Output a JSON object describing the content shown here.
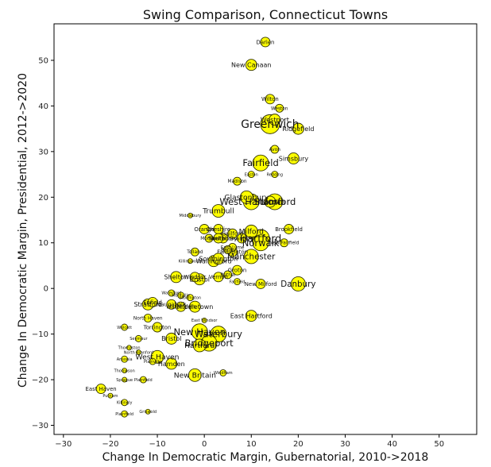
{
  "chart_data": {
    "type": "scatter",
    "title": "Swing Comparison, Connecticut Towns",
    "xlabel": "Change In Democratic Margin, Gubernatorial, 2010->2018",
    "ylabel": "Change In Democratic Margin, Presidential, 2012->2020",
    "xlim": [
      -32,
      58
    ],
    "ylim": [
      -32,
      58
    ],
    "xticks": [
      -30,
      -20,
      -10,
      0,
      10,
      20,
      30,
      40,
      50
    ],
    "yticks": [
      -30,
      -20,
      -10,
      0,
      10,
      20,
      30,
      40,
      50
    ],
    "grid": false,
    "marker_color": "#ffff00",
    "edge_color": "#333300",
    "points": [
      {
        "label": "Darien",
        "x": 13,
        "y": 54,
        "size": 6
      },
      {
        "label": "New Canaan",
        "x": 10,
        "y": 49,
        "size": 7
      },
      {
        "label": "Wilton",
        "x": 14,
        "y": 41.5,
        "size": 6
      },
      {
        "label": "Weston",
        "x": 16,
        "y": 39.5,
        "size": 5
      },
      {
        "label": "Westport",
        "x": 15,
        "y": 37,
        "size": 7
      },
      {
        "label": "Greenwich",
        "x": 14,
        "y": 36,
        "size": 12
      },
      {
        "label": "Ridgefield",
        "x": 20,
        "y": 35,
        "size": 7
      },
      {
        "label": "Avon",
        "x": 15,
        "y": 30.5,
        "size": 5
      },
      {
        "label": "Simsbury",
        "x": 19,
        "y": 28.5,
        "size": 7
      },
      {
        "label": "Fairfield",
        "x": 12,
        "y": 27.5,
        "size": 10
      },
      {
        "label": "Easton",
        "x": 10,
        "y": 25,
        "size": 4
      },
      {
        "label": "Redding",
        "x": 15,
        "y": 25,
        "size": 4
      },
      {
        "label": "Madison",
        "x": 7,
        "y": 23.5,
        "size": 5
      },
      {
        "label": "Glastonbury",
        "x": 9,
        "y": 20,
        "size": 8
      },
      {
        "label": "West Hartford",
        "x": 10,
        "y": 19,
        "size": 10
      },
      {
        "label": "Stamford",
        "x": 15,
        "y": 19,
        "size": 10
      },
      {
        "label": "Newtown",
        "x": 14,
        "y": 19,
        "size": 7
      },
      {
        "label": "Trumbull",
        "x": 3,
        "y": 17,
        "size": 8
      },
      {
        "label": "Middlebury",
        "x": -3,
        "y": 16,
        "size": 3
      },
      {
        "label": "Orange",
        "x": 0,
        "y": 13,
        "size": 6
      },
      {
        "label": "Cheshire",
        "x": 3,
        "y": 13,
        "size": 6
      },
      {
        "label": "Brookfield",
        "x": 18,
        "y": 13,
        "size": 6
      },
      {
        "label": "Milford",
        "x": 10,
        "y": 12.5,
        "size": 8
      },
      {
        "label": "Guilford",
        "x": 6,
        "y": 12,
        "size": 6
      },
      {
        "label": "Monroe",
        "x": 1,
        "y": 11,
        "size": 5
      },
      {
        "label": "Southbury",
        "x": 4,
        "y": 11,
        "size": 6
      },
      {
        "label": "Shelton",
        "x": 3,
        "y": 11,
        "size": 6
      },
      {
        "label": "Branford",
        "x": 8,
        "y": 11,
        "size": 6
      },
      {
        "label": "Hartford",
        "x": 12,
        "y": 11,
        "size": 11
      },
      {
        "label": "Norwalk",
        "x": 12,
        "y": 10,
        "size": 10
      },
      {
        "label": "New Fairfield",
        "x": 17,
        "y": 10,
        "size": 5
      },
      {
        "label": "East Lyme",
        "x": 6,
        "y": 9,
        "size": 5
      },
      {
        "label": "Berlin",
        "x": 5,
        "y": 8.5,
        "size": 5
      },
      {
        "label": "Farmington",
        "x": 6,
        "y": 8,
        "size": 6
      },
      {
        "label": "Tolland",
        "x": -2,
        "y": 8,
        "size": 5
      },
      {
        "label": "Killingworth",
        "x": -3,
        "y": 6,
        "size": 3
      },
      {
        "label": "Wallingford",
        "x": 2,
        "y": 6,
        "size": 7
      },
      {
        "label": "Southington",
        "x": 3,
        "y": 6.5,
        "size": 7
      },
      {
        "label": "Manchester",
        "x": 10,
        "y": 7,
        "size": 9
      },
      {
        "label": "Groton",
        "x": 7,
        "y": 4,
        "size": 6
      },
      {
        "label": "Bethel",
        "x": 5,
        "y": 3,
        "size": 5
      },
      {
        "label": "Shelton",
        "x": -6,
        "y": 2.5,
        "size": 7
      },
      {
        "label": "Windsor",
        "x": -2,
        "y": 2.5,
        "size": 6
      },
      {
        "label": "Vernon",
        "x": 3,
        "y": 2.5,
        "size": 6
      },
      {
        "label": "Bristol",
        "x": -1,
        "y": 2,
        "size": 7
      },
      {
        "label": "Fairfield",
        "x": 7,
        "y": 1.5,
        "size": 4
      },
      {
        "label": "New Milford",
        "x": 12,
        "y": 1,
        "size": 6
      },
      {
        "label": "Danbury",
        "x": 20,
        "y": 1,
        "size": 9
      },
      {
        "label": "Waterford",
        "x": -7,
        "y": -1,
        "size": 4
      },
      {
        "label": "Montville",
        "x": -5,
        "y": -1.5,
        "size": 4
      },
      {
        "label": "Stonington",
        "x": -3,
        "y": -2,
        "size": 4
      },
      {
        "label": "Enfield",
        "x": -11,
        "y": -3,
        "size": 6
      },
      {
        "label": "Naugatuck",
        "x": -7,
        "y": -3.5,
        "size": 6
      },
      {
        "label": "Watertown",
        "x": -5,
        "y": -4,
        "size": 6
      },
      {
        "label": "Middletown",
        "x": -2,
        "y": -4,
        "size": 7
      },
      {
        "label": "Stratford",
        "x": -12,
        "y": -3.5,
        "size": 7
      },
      {
        "label": "East Hartford",
        "x": 10,
        "y": -6,
        "size": 7
      },
      {
        "label": "North Haven",
        "x": -12,
        "y": -6.5,
        "size": 5
      },
      {
        "label": "East Windsor",
        "x": 0,
        "y": -7,
        "size": 3
      },
      {
        "label": "Wolcott",
        "x": -17,
        "y": -8.5,
        "size": 4
      },
      {
        "label": "Torrington",
        "x": -10,
        "y": -8.5,
        "size": 6
      },
      {
        "label": "New Haven",
        "x": -1,
        "y": -9.5,
        "size": 10
      },
      {
        "label": "Waterbury",
        "x": 3,
        "y": -10,
        "size": 10
      },
      {
        "label": "Seymour",
        "x": -14,
        "y": -11,
        "size": 4
      },
      {
        "label": "Bridgeport",
        "x": 1,
        "y": -12,
        "size": 10
      },
      {
        "label": "Bristol",
        "x": -7,
        "y": -11,
        "size": 7
      },
      {
        "label": "Hartford",
        "x": -1,
        "y": -12.5,
        "size": 8
      },
      {
        "label": "Thomaston",
        "x": -16,
        "y": -13,
        "size": 3
      },
      {
        "label": "North Branford",
        "x": -14,
        "y": -14,
        "size": 3
      },
      {
        "label": "West Haven",
        "x": -10,
        "y": -15,
        "size": 8
      },
      {
        "label": "Ansonia",
        "x": -17,
        "y": -15.5,
        "size": 4
      },
      {
        "label": "Hamden",
        "x": -7,
        "y": -16.5,
        "size": 7
      },
      {
        "label": "Plainville",
        "x": -11,
        "y": -16,
        "size": 4
      },
      {
        "label": "Thompson",
        "x": -17,
        "y": -18,
        "size": 3
      },
      {
        "label": "New Britain",
        "x": -2,
        "y": -19,
        "size": 8
      },
      {
        "label": "Windham",
        "x": 4,
        "y": -18.5,
        "size": 4
      },
      {
        "label": "Plainfield",
        "x": -13,
        "y": -20,
        "size": 4
      },
      {
        "label": "Sprague",
        "x": -17,
        "y": -20,
        "size": 3
      },
      {
        "label": "East Haven",
        "x": -22,
        "y": -22,
        "size": 6
      },
      {
        "label": "Putnam",
        "x": -20,
        "y": -23.5,
        "size": 3
      },
      {
        "label": "Killingly",
        "x": -17,
        "y": -25,
        "size": 4
      },
      {
        "label": "Griswold",
        "x": -12,
        "y": -27,
        "size": 3
      },
      {
        "label": "Plainfield",
        "x": -17,
        "y": -27.5,
        "size": 4
      }
    ]
  }
}
